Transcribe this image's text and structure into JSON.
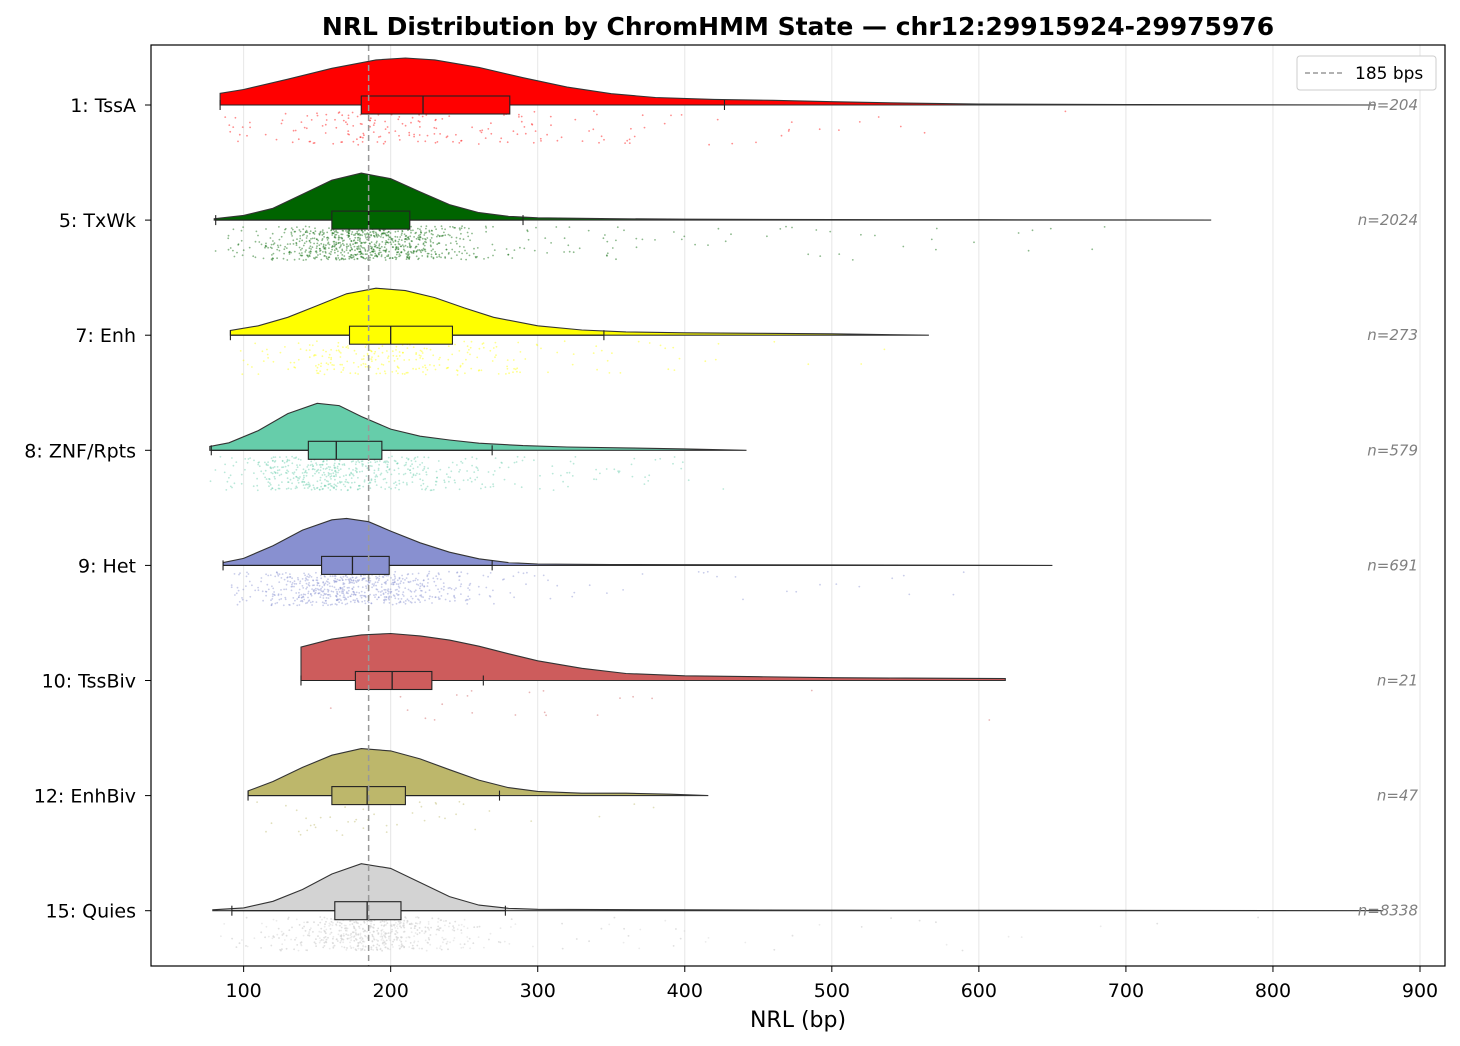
{
  "chart_data": {
    "type": "violin",
    "title": "NRL Distribution by ChromHMM State — chr12:29915924-29975976",
    "xlabel": "NRL (bp)",
    "ylabel": "",
    "xlim": [
      37,
      917
    ],
    "xticks": [
      100,
      200,
      300,
      400,
      500,
      600,
      700,
      800,
      900
    ],
    "xtick_labels": [
      "100",
      "200",
      "300",
      "400",
      "500",
      "600",
      "700",
      "800",
      "900"
    ],
    "grid": "vertical",
    "reference_line": {
      "value": 185,
      "label": "185 bps",
      "style": "dashed",
      "color": "#999999"
    },
    "legend": {
      "placement": "top-right",
      "entries": [
        "185 bps"
      ]
    },
    "series": [
      {
        "name": "1: TssA",
        "n_label": "n=204",
        "color": "#ff0000",
        "n_points": 204,
        "min": 84,
        "max": 870,
        "q1": 180,
        "median": 222,
        "q3": 281,
        "whisker_low": 84,
        "whisker_high": 427,
        "kde": [
          [
            84,
            0.25
          ],
          [
            100,
            0.33
          ],
          [
            130,
            0.55
          ],
          [
            160,
            0.78
          ],
          [
            190,
            0.96
          ],
          [
            210,
            1.0
          ],
          [
            230,
            0.96
          ],
          [
            260,
            0.8
          ],
          [
            290,
            0.58
          ],
          [
            320,
            0.38
          ],
          [
            350,
            0.24
          ],
          [
            380,
            0.16
          ],
          [
            420,
            0.12
          ],
          [
            460,
            0.1
          ],
          [
            500,
            0.07
          ],
          [
            550,
            0.04
          ],
          [
            600,
            0.02
          ],
          [
            700,
            0.01
          ],
          [
            870,
            0.0
          ]
        ]
      },
      {
        "name": "5: TxWk",
        "n_label": "n=2024",
        "color": "#006400",
        "n_points": 2024,
        "min": 80,
        "max": 758,
        "q1": 160,
        "median": 185,
        "q3": 213,
        "whisker_low": 81,
        "whisker_high": 290,
        "kde": [
          [
            80,
            0.03
          ],
          [
            100,
            0.1
          ],
          [
            120,
            0.25
          ],
          [
            140,
            0.55
          ],
          [
            160,
            0.85
          ],
          [
            180,
            1.0
          ],
          [
            200,
            0.88
          ],
          [
            220,
            0.6
          ],
          [
            240,
            0.33
          ],
          [
            260,
            0.16
          ],
          [
            280,
            0.08
          ],
          [
            300,
            0.05
          ],
          [
            350,
            0.03
          ],
          [
            400,
            0.02
          ],
          [
            500,
            0.01
          ],
          [
            600,
            0.008
          ],
          [
            758,
            0.0
          ]
        ]
      },
      {
        "name": "7: Enh",
        "n_label": "n=273",
        "color": "#ffff00",
        "n_points": 273,
        "min": 91,
        "max": 566,
        "q1": 172,
        "median": 200,
        "q3": 242,
        "whisker_low": 91,
        "whisker_high": 345,
        "kde": [
          [
            91,
            0.1
          ],
          [
            110,
            0.2
          ],
          [
            130,
            0.38
          ],
          [
            150,
            0.63
          ],
          [
            170,
            0.88
          ],
          [
            190,
            1.0
          ],
          [
            210,
            0.95
          ],
          [
            230,
            0.8
          ],
          [
            250,
            0.58
          ],
          [
            270,
            0.38
          ],
          [
            300,
            0.2
          ],
          [
            330,
            0.11
          ],
          [
            360,
            0.07
          ],
          [
            400,
            0.05
          ],
          [
            450,
            0.04
          ],
          [
            500,
            0.03
          ],
          [
            566,
            0.0
          ]
        ]
      },
      {
        "name": "8: ZNF/Rpts",
        "n_label": "n=579",
        "color": "#66cdaa",
        "n_points": 579,
        "min": 77,
        "max": 442,
        "q1": 144,
        "median": 163,
        "q3": 194,
        "whisker_low": 78,
        "whisker_high": 269,
        "kde": [
          [
            77,
            0.08
          ],
          [
            90,
            0.16
          ],
          [
            110,
            0.42
          ],
          [
            130,
            0.78
          ],
          [
            150,
            1.0
          ],
          [
            165,
            0.95
          ],
          [
            180,
            0.72
          ],
          [
            200,
            0.45
          ],
          [
            220,
            0.3
          ],
          [
            240,
            0.22
          ],
          [
            260,
            0.15
          ],
          [
            290,
            0.1
          ],
          [
            320,
            0.07
          ],
          [
            360,
            0.05
          ],
          [
            400,
            0.03
          ],
          [
            442,
            0.0
          ]
        ]
      },
      {
        "name": "9: Het",
        "n_label": "n=691",
        "color": "#8890d0",
        "n_points": 691,
        "min": 86,
        "max": 650,
        "q1": 153,
        "median": 174,
        "q3": 199,
        "whisker_low": 86,
        "whisker_high": 269,
        "kde": [
          [
            86,
            0.06
          ],
          [
            100,
            0.15
          ],
          [
            120,
            0.42
          ],
          [
            140,
            0.75
          ],
          [
            160,
            0.97
          ],
          [
            170,
            1.0
          ],
          [
            185,
            0.93
          ],
          [
            200,
            0.73
          ],
          [
            220,
            0.48
          ],
          [
            240,
            0.28
          ],
          [
            260,
            0.14
          ],
          [
            280,
            0.06
          ],
          [
            300,
            0.03
          ],
          [
            350,
            0.02
          ],
          [
            400,
            0.015
          ],
          [
            500,
            0.01
          ],
          [
            650,
            0.0
          ]
        ]
      },
      {
        "name": "10: TssBiv",
        "n_label": "n=21",
        "color": "#cd5c5c",
        "n_points": 21,
        "min": 139,
        "max": 618,
        "q1": 176,
        "median": 201,
        "q3": 228,
        "whisker_low": 139,
        "whisker_high": 263,
        "kde": [
          [
            139,
            0.71
          ],
          [
            160,
            0.88
          ],
          [
            180,
            0.97
          ],
          [
            200,
            1.0
          ],
          [
            220,
            0.95
          ],
          [
            240,
            0.86
          ],
          [
            260,
            0.73
          ],
          [
            280,
            0.57
          ],
          [
            300,
            0.42
          ],
          [
            330,
            0.26
          ],
          [
            360,
            0.15
          ],
          [
            400,
            0.1
          ],
          [
            450,
            0.08
          ],
          [
            500,
            0.06
          ],
          [
            550,
            0.05
          ],
          [
            618,
            0.04
          ]
        ]
      },
      {
        "name": "12: EnhBiv",
        "n_label": "n=47",
        "color": "#bdb76b",
        "n_points": 47,
        "min": 103,
        "max": 416,
        "q1": 160,
        "median": 184,
        "q3": 210,
        "whisker_low": 103,
        "whisker_high": 274,
        "kde": [
          [
            103,
            0.1
          ],
          [
            120,
            0.3
          ],
          [
            140,
            0.6
          ],
          [
            160,
            0.86
          ],
          [
            180,
            1.0
          ],
          [
            200,
            0.95
          ],
          [
            220,
            0.78
          ],
          [
            240,
            0.55
          ],
          [
            260,
            0.33
          ],
          [
            280,
            0.17
          ],
          [
            300,
            0.09
          ],
          [
            330,
            0.05
          ],
          [
            360,
            0.05
          ],
          [
            390,
            0.03
          ],
          [
            416,
            0.0
          ]
        ]
      },
      {
        "name": "15: Quies",
        "n_label": "n=8338",
        "color": "#d3d3d3",
        "n_points": 8338,
        "min": 79,
        "max": 875,
        "q1": 162,
        "median": 184,
        "q3": 207,
        "whisker_low": 92,
        "whisker_high": 278,
        "kde": [
          [
            79,
            0.02
          ],
          [
            100,
            0.06
          ],
          [
            120,
            0.2
          ],
          [
            140,
            0.45
          ],
          [
            160,
            0.78
          ],
          [
            180,
            1.0
          ],
          [
            200,
            0.9
          ],
          [
            220,
            0.6
          ],
          [
            240,
            0.3
          ],
          [
            260,
            0.12
          ],
          [
            280,
            0.05
          ],
          [
            300,
            0.03
          ],
          [
            400,
            0.02
          ],
          [
            500,
            0.01
          ],
          [
            600,
            0.008
          ],
          [
            875,
            0.0
          ]
        ]
      }
    ]
  }
}
